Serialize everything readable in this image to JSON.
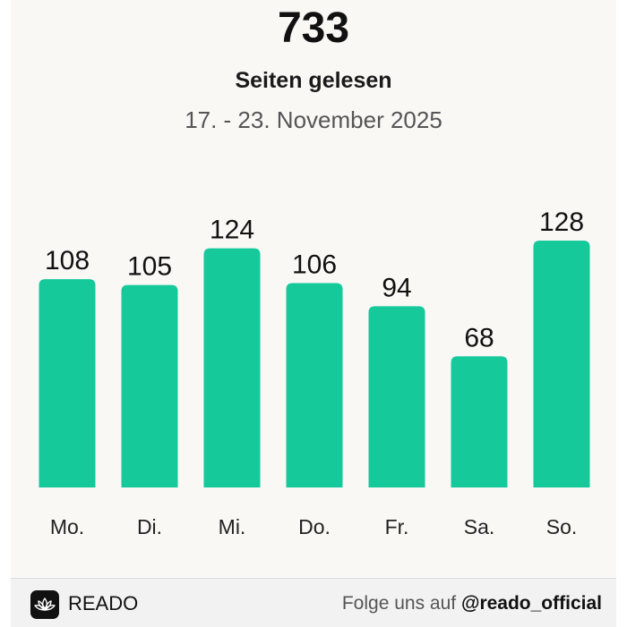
{
  "header": {
    "total": "733",
    "subtitle": "Seiten gelesen",
    "date_range": "17. - 23. November 2025"
  },
  "chart_data": {
    "type": "bar",
    "categories": [
      "Mo.",
      "Di.",
      "Mi.",
      "Do.",
      "Fr.",
      "Sa.",
      "So."
    ],
    "values": [
      108,
      105,
      124,
      106,
      94,
      68,
      128
    ],
    "title": "",
    "xlabel": "",
    "ylabel": "",
    "ylim": [
      0,
      128
    ],
    "grid": false,
    "bar_color": "#15c99b"
  },
  "footer": {
    "brand": "READO",
    "follow_prefix": "Folge uns auf",
    "handle": "@reado_official"
  },
  "colors": {
    "bar": "#15c99b",
    "card_background": "#faf8f5",
    "footer_background": "#f2f2f2"
  },
  "icons": {
    "logo": "lotus-icon"
  }
}
